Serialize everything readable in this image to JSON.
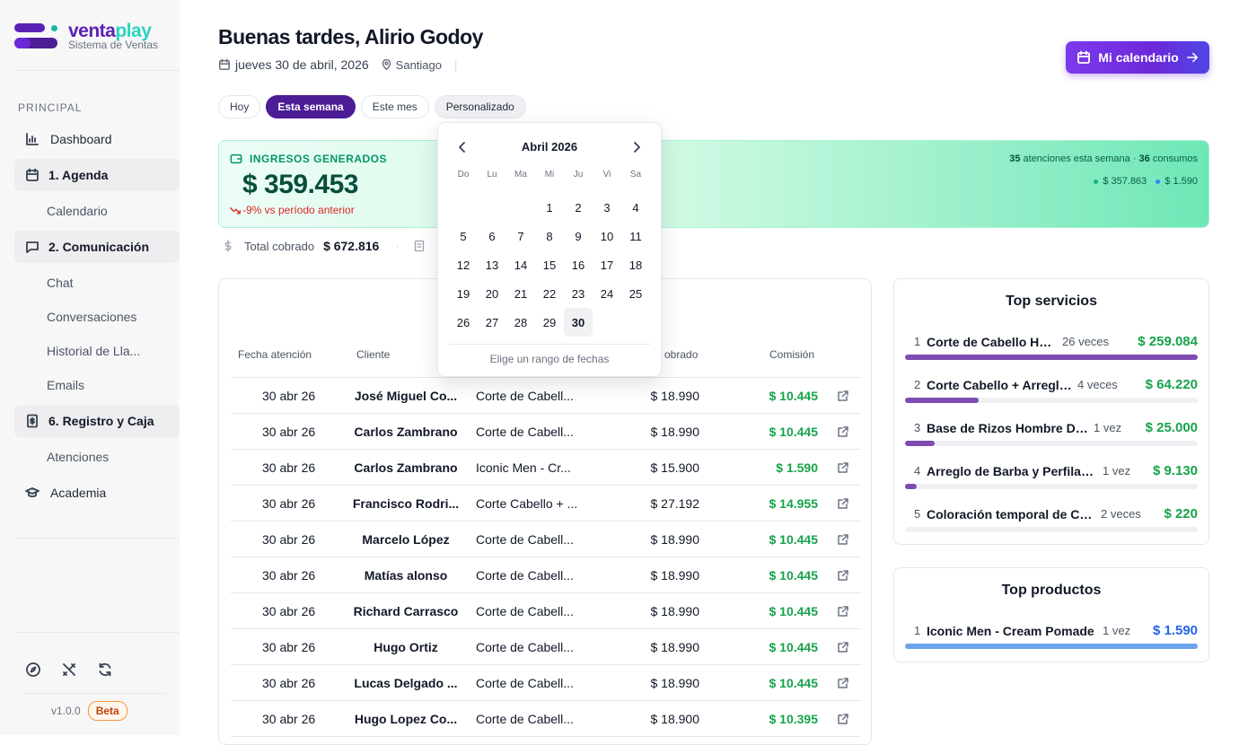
{
  "brand": {
    "name_a": "venta",
    "name_b": "play",
    "subtitle": "Sistema de Ventas"
  },
  "sidebar": {
    "section": "PRINCIPAL",
    "items": [
      {
        "label": "Dashboard",
        "icon": "bar-chart-icon",
        "type": "top"
      },
      {
        "label": "1. Agenda",
        "icon": "calendar-icon",
        "type": "group"
      },
      {
        "label": "Calendario",
        "type": "sub"
      },
      {
        "label": "2. Comunicación",
        "icon": "message-icon",
        "type": "group"
      },
      {
        "label": "Chat",
        "type": "sub"
      },
      {
        "label": "Conversaciones",
        "type": "sub"
      },
      {
        "label": "Historial de Lla...",
        "type": "sub"
      },
      {
        "label": "Emails",
        "type": "sub"
      },
      {
        "label": "6. Registro y Caja",
        "icon": "receipt-icon",
        "type": "group"
      },
      {
        "label": "Atenciones",
        "type": "sub"
      },
      {
        "label": "Academia",
        "icon": "graduation-cap-icon",
        "type": "top"
      }
    ],
    "footer_icons": [
      "compass-icon",
      "tools-icon",
      "refresh-icon"
    ],
    "version": "v1.0.0",
    "badge": "Beta"
  },
  "header": {
    "greeting": "Buenas tardes, Alirio Godoy",
    "date": "jueves 30 de abril, 2026",
    "location": "Santiago",
    "calendar_button": "Mi calendario"
  },
  "filters": [
    "Hoy",
    "Esta semana",
    "Este mes",
    "Personalizado"
  ],
  "income": {
    "label": "INGRESOS GENERADOS",
    "value": "$ 359.453",
    "delta": "-9% vs período anterior",
    "attentions_count": "35",
    "attentions_text": "atenciones esta semana ·",
    "consumptions_count": "36",
    "consumptions_text": "consumos",
    "legend": [
      {
        "value": "$ 357.863",
        "color": "#10b981"
      },
      {
        "value": "$ 1.590",
        "color": "#3b82f6"
      }
    ]
  },
  "totals": {
    "label": "Total cobrado",
    "value": "$ 672.816"
  },
  "table": {
    "headers": {
      "date": "Fecha atención",
      "client": "Cliente",
      "paid": "obrado",
      "commission": "Comisión"
    },
    "rows": [
      {
        "date": "30 abr 26",
        "client": "José Miguel Co...",
        "service": "Corte de Cabell...",
        "paid": "$ 18.990",
        "commission": "$ 10.445"
      },
      {
        "date": "30 abr 26",
        "client": "Carlos Zambrano",
        "service": "Corte de Cabell...",
        "paid": "$ 18.990",
        "commission": "$ 10.445"
      },
      {
        "date": "30 abr 26",
        "client": "Carlos Zambrano",
        "service": "Iconic Men - Cr...",
        "paid": "$ 15.900",
        "commission": "$ 1.590"
      },
      {
        "date": "30 abr 26",
        "client": "Francisco Rodri...",
        "service": "Corte Cabello + ...",
        "paid": "$ 27.192",
        "commission": "$ 14.955"
      },
      {
        "date": "30 abr 26",
        "client": "Marcelo López",
        "service": "Corte de Cabell...",
        "paid": "$ 18.990",
        "commission": "$ 10.445"
      },
      {
        "date": "30 abr 26",
        "client": "Matías alonso",
        "service": "Corte de Cabell...",
        "paid": "$ 18.990",
        "commission": "$ 10.445"
      },
      {
        "date": "30 abr 26",
        "client": "Richard Carrasco",
        "service": "Corte de Cabell...",
        "paid": "$ 18.990",
        "commission": "$ 10.445"
      },
      {
        "date": "30 abr 26",
        "client": "Hugo Ortiz",
        "service": "Corte de Cabell...",
        "paid": "$ 18.990",
        "commission": "$ 10.445"
      },
      {
        "date": "30 abr 26",
        "client": "Lucas Delgado ...",
        "service": "Corte de Cabell...",
        "paid": "$ 18.990",
        "commission": "$ 10.445"
      },
      {
        "date": "30 abr 26",
        "client": "Hugo Lopez Co...",
        "service": "Corte de Cabell...",
        "paid": "$ 18.900",
        "commission": "$ 10.395"
      }
    ]
  },
  "top_services": {
    "title": "Top servicios",
    "bar_color": "#7e4cb1",
    "items": [
      {
        "rank": "1",
        "name": "Corte de Cabello Ho...",
        "count": "26 veces",
        "amount": "$ 259.084",
        "share": 1.0
      },
      {
        "rank": "2",
        "name": "Corte Cabello + Arreglo ...",
        "count": "4 veces",
        "amount": "$ 64.220",
        "share": 0.25
      },
      {
        "rank": "3",
        "name": "Base de Rizos Hombre DE...",
        "count": "1 vez",
        "amount": "$ 25.000",
        "share": 0.1
      },
      {
        "rank": "4",
        "name": "Arreglo de Barba y Perfilad...",
        "count": "1 vez",
        "amount": "$ 9.130",
        "share": 0.04
      },
      {
        "rank": "5",
        "name": "Coloración temporal de Ca...",
        "count": "2 veces",
        "amount": "$ 220",
        "share": 0.0
      }
    ]
  },
  "top_products": {
    "title": "Top productos",
    "bar_color": "#6ea3ec",
    "amount_color": "#2563eb",
    "items": [
      {
        "rank": "1",
        "name": "Iconic Men - Cream Pomade",
        "count": "1 vez",
        "amount": "$ 1.590",
        "share": 1.0
      }
    ]
  },
  "datepicker": {
    "month": "Abril 2026",
    "weekdays": [
      "Do",
      "Lu",
      "Ma",
      "Mi",
      "Ju",
      "Vi",
      "Sa"
    ],
    "first_weekday_offset": 3,
    "days_in_month": 30,
    "selected_day": 30,
    "hint": "Elige un rango de fechas"
  }
}
